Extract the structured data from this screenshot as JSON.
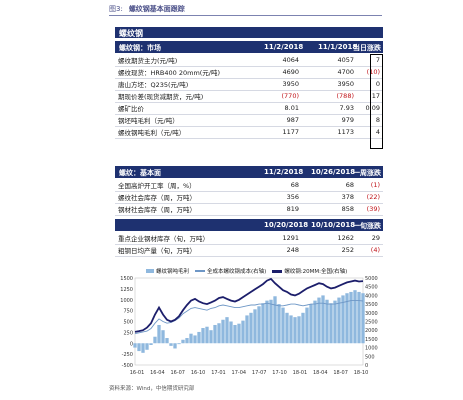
{
  "figure": {
    "number": "图3:",
    "title": "螺纹钢基本面跟踪"
  },
  "section_title": "螺纹钢",
  "market": {
    "header": [
      "螺纹钢：市场",
      "11/2/2018",
      "11/1/2018",
      "当日涨跌"
    ],
    "rows": [
      [
        "螺纹期货主力(元/吨)",
        "4064",
        "4057",
        "7"
      ],
      [
        "螺纹现货：HRB400  20mm(元/吨)",
        "4690",
        "4700",
        "(10)"
      ],
      [
        "唐山方坯：Q235(元/吨)",
        "3950",
        "3950",
        "0"
      ],
      [
        "期现价差(现货减期货，元/吨)",
        "(770)",
        "(788)",
        "17"
      ],
      [
        "螺矿比价",
        "8.01",
        "7.93",
        "0.09"
      ],
      [
        "钢坯吨毛利（元/吨）",
        "987",
        "979",
        "8"
      ],
      [
        "螺纹钢吨毛利（元/吨）",
        "1177",
        "1173",
        "4"
      ]
    ]
  },
  "fundamentals": {
    "header": [
      "螺纹：基本面",
      "11/2/2018",
      "10/26/2018",
      "一周涨跌"
    ],
    "rows": [
      [
        "全国高炉开工率（周，%）",
        "68",
        "68",
        "(1)"
      ],
      [
        "螺纹社会库存（周，万吨）",
        "356",
        "378",
        "(22)"
      ],
      [
        "钢材社会库存（周，万吨）",
        "819",
        "858",
        "(39)"
      ]
    ],
    "header2": [
      "",
      "10/20/2018",
      "10/10/2018",
      "一旬涨跌"
    ],
    "rows2": [
      [
        "重点企业钢材库存（旬，万吨）",
        "1291",
        "1262",
        "29"
      ],
      [
        "粗钢日均产量（旬，万吨）",
        "248",
        "252",
        "(4)"
      ]
    ]
  },
  "chart_data": {
    "type": "line",
    "title": "",
    "legend": [
      "螺纹钢吨毛利",
      "全成本螺纹钢成本(右轴)",
      "螺纹钢:20MM:全国(右轴)"
    ],
    "x_ticks": [
      "16-01",
      "16-04",
      "16-07",
      "16-10",
      "17-01",
      "17-04",
      "17-07",
      "17-10",
      "18-01",
      "18-04",
      "18-07",
      "18-10"
    ],
    "left_axis": {
      "ticks": [
        "-500",
        "-250",
        "0",
        "250",
        "500",
        "750",
        "1000",
        "1250",
        "1500"
      ],
      "ylim": [
        -500,
        1500
      ]
    },
    "right_axis": {
      "ticks": [
        "0",
        "500",
        "1000",
        "1500",
        "2000",
        "2500",
        "3000",
        "3500",
        "4000",
        "4500",
        "5000"
      ],
      "ylim": [
        0,
        5000
      ]
    },
    "series": [
      {
        "name": "螺纹钢吨毛利",
        "color": "#8fb8de",
        "values": [
          -100,
          -180,
          -220,
          -150,
          -40,
          150,
          420,
          300,
          120,
          -60,
          -120,
          -20,
          80,
          120,
          220,
          180,
          260,
          350,
          380,
          300,
          420,
          460,
          540,
          600,
          500,
          420,
          450,
          520,
          640,
          700,
          780,
          850,
          920,
          980,
          1000,
          1080,
          900,
          820,
          700,
          640,
          600,
          620,
          700,
          820,
          900,
          980,
          1050,
          1100,
          1000,
          920,
          980,
          1050,
          1100,
          1150,
          1180,
          1220,
          1180,
          1150
        ]
      },
      {
        "name": "全成本螺纹钢成本(右轴)",
        "color": "#6e97c6",
        "values": [
          1800,
          1850,
          1900,
          1950,
          2100,
          2400,
          2650,
          2500,
          2400,
          2450,
          2550,
          2700,
          2950,
          3100,
          3250,
          3300,
          3250,
          3200,
          3150,
          3250,
          3300,
          3400,
          3450,
          3400,
          3350,
          3300,
          3300,
          3350,
          3400,
          3450,
          3450,
          3500,
          3500,
          3550,
          3500,
          3450,
          3400,
          3400,
          3450,
          3500,
          3500,
          3450,
          3400,
          3450,
          3500,
          3500,
          3550,
          3550,
          3500,
          3500,
          3500,
          3550,
          3600,
          3650,
          3700,
          3700,
          3700,
          3680
        ]
      },
      {
        "name": "螺纹钢:20MM:全国(右轴)",
        "color": "#1c1e6b",
        "values": [
          1900,
          1950,
          2000,
          2150,
          2400,
          2900,
          3300,
          2900,
          2600,
          2500,
          2600,
          2800,
          3150,
          3450,
          3700,
          3800,
          3650,
          3550,
          3500,
          3600,
          3700,
          3850,
          3900,
          3800,
          3700,
          3650,
          3750,
          3900,
          4050,
          4200,
          4350,
          4500,
          4650,
          4850,
          4950,
          4700,
          4500,
          4300,
          4200,
          4050,
          4000,
          4100,
          4250,
          4400,
          4500,
          4600,
          4700,
          4650,
          4500,
          4400,
          4450,
          4550,
          4650,
          4750,
          4800,
          4850,
          4800,
          4820
        ]
      }
    ]
  },
  "source": "资料来源：Wind，中信期货研究部"
}
